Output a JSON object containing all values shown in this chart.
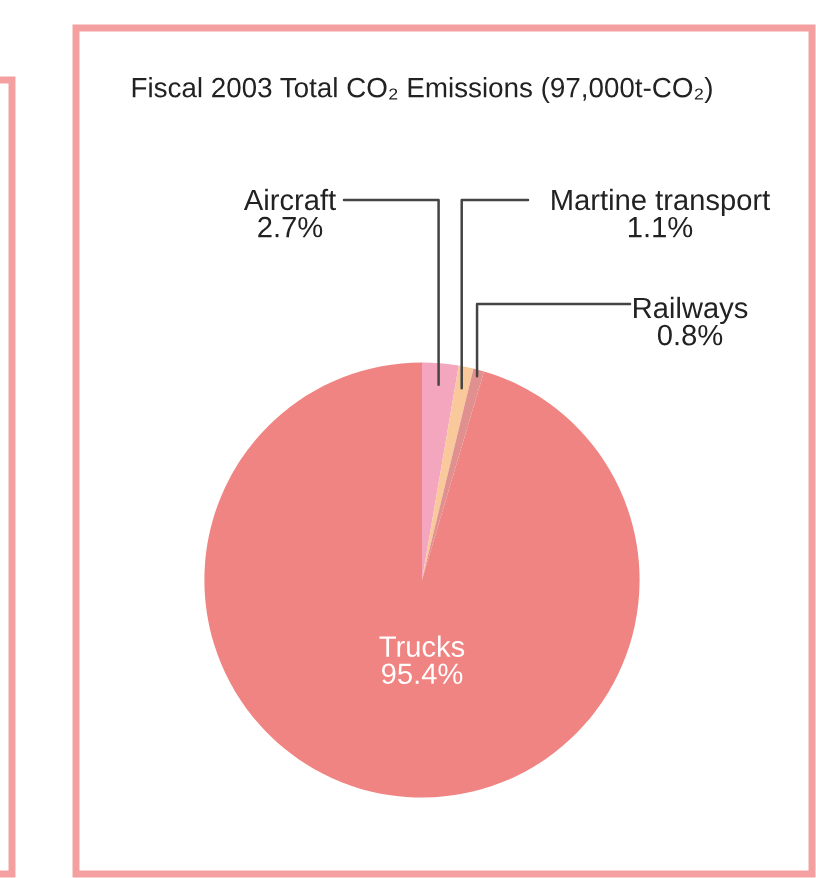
{
  "chart_data": {
    "type": "pie",
    "title": "Fiscal 2003 Total CO₂ Emissions (97,000t-CO₂)",
    "categories": [
      "Aircraft",
      "Martine transport",
      "Railways",
      "Trucks"
    ],
    "values": [
      2.7,
      1.1,
      0.8,
      95.4
    ],
    "value_labels": [
      "2.7%",
      "1.1%",
      "0.8%",
      "95.4%"
    ],
    "colors": [
      "#f4a6bf",
      "#f9c89b",
      "#e0908f",
      "#f08482"
    ]
  }
}
